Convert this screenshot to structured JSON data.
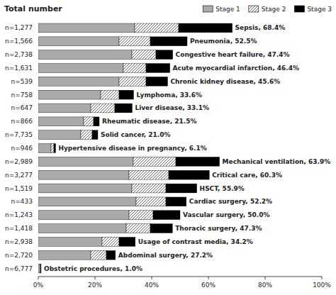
{
  "chart_data": {
    "type": "bar",
    "orientation": "horizontal",
    "stacked": true,
    "title": "Total number",
    "categories": [
      "Sepsis, 68.4%",
      "Pneumonia, 52.5%",
      "Congestive heart failure, 47.4%",
      "Acute myocardial infarction, 46.4%",
      "Chronic kidney disease, 45.6%",
      "Lymphoma, 33.6%",
      "Liver disease, 33.1%",
      "Rheumatic disease, 21.5%",
      "Solid cancer, 21.0%",
      "Hypertensive disease in pregnancy, 6.1%",
      "Mechanical ventilation, 63.9%",
      "Critical care, 60.3%",
      "HSCT, 55.9%",
      "Cardiac surgery, 52.2%",
      "Vascular surgery, 50.0%",
      "Thoracic surgery, 47.3%",
      "Usage of contrast media, 34.2%",
      "Abdominal surgery, 27.2%",
      "Obstetric procedures, 1.0%"
    ],
    "annotations": [
      "n=1,277",
      "n=1,566",
      "n=2,738",
      "n=1,631",
      "n=539",
      "n=758",
      "n=647",
      "n=866",
      "n=7,735",
      "n=946",
      "n=2,989",
      "n=3,277",
      "n=1,519",
      "n=433",
      "n=1,243",
      "n=1,418",
      "n=2,938",
      "n=2,720",
      "n=6,777"
    ],
    "series": [
      {
        "name": "Stage 1",
        "color": "#aaaaaa",
        "values": [
          34.0,
          28.5,
          33.0,
          30.0,
          28.5,
          22.0,
          18.5,
          16.0,
          15.0,
          4.5,
          33.5,
          32.0,
          33.0,
          34.5,
          32.0,
          31.0,
          22.5,
          18.5,
          0.7
        ]
      },
      {
        "name": "Stage 2",
        "color": "#ffffff",
        "values": [
          15.5,
          11.0,
          8.5,
          8.0,
          9.5,
          6.5,
          8.5,
          3.5,
          4.0,
          1.0,
          15.0,
          14.0,
          12.0,
          10.5,
          8.5,
          8.5,
          6.0,
          5.5,
          0.2
        ]
      },
      {
        "name": "Stage 3",
        "color": "#000000",
        "values": [
          18.9,
          13.0,
          5.9,
          8.4,
          7.6,
          5.1,
          6.1,
          2.0,
          2.0,
          0.6,
          15.4,
          14.3,
          10.9,
          7.2,
          9.5,
          7.8,
          5.7,
          3.2,
          0.1
        ]
      }
    ],
    "xlim": [
      0,
      100
    ],
    "xticks": [
      {
        "value": 0,
        "label": "0%"
      },
      {
        "value": 20,
        "label": "20%"
      },
      {
        "value": 40,
        "label": "40%"
      },
      {
        "value": 60,
        "label": "60%"
      },
      {
        "value": 80,
        "label": "80%"
      },
      {
        "value": 100,
        "label": "100%"
      }
    ],
    "tick_labels": "x",
    "grid": false,
    "legend": "top"
  }
}
